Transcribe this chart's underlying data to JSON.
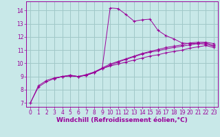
{
  "background_color": "#c8e8e8",
  "grid_color": "#a0c8c8",
  "line_color": "#990099",
  "marker": "+",
  "xlabel": "Windchill (Refroidissement éolien,°C)",
  "xlabel_color": "#990099",
  "xlabel_fontsize": 6.5,
  "tick_color": "#990099",
  "tick_fontsize": 5.5,
  "xlim": [
    -0.5,
    23.5
  ],
  "ylim": [
    6.7,
    14.7
  ],
  "yticks": [
    7,
    8,
    9,
    10,
    11,
    12,
    13,
    14
  ],
  "xticks": [
    0,
    1,
    2,
    3,
    4,
    5,
    6,
    7,
    8,
    9,
    10,
    11,
    12,
    13,
    14,
    15,
    16,
    17,
    18,
    19,
    20,
    21,
    22,
    23
  ],
  "line1_x": [
    0,
    1,
    2,
    3,
    4,
    5,
    6,
    7,
    8,
    9,
    10,
    11,
    12,
    13,
    14,
    15,
    16,
    17,
    18,
    19,
    20,
    21,
    22,
    23
  ],
  "line1_y": [
    7.0,
    8.3,
    8.7,
    8.9,
    9.0,
    9.1,
    9.0,
    9.1,
    9.3,
    9.6,
    14.2,
    14.15,
    13.7,
    13.2,
    13.3,
    13.35,
    12.5,
    12.1,
    11.85,
    11.55,
    11.5,
    11.5,
    11.45,
    11.3
  ],
  "line2_x": [
    0,
    1,
    2,
    3,
    4,
    5,
    6,
    7,
    8,
    9,
    10,
    11,
    12,
    13,
    14,
    15,
    16,
    17,
    18,
    19,
    20,
    21,
    22,
    23
  ],
  "line2_y": [
    7.0,
    8.2,
    8.6,
    8.85,
    9.0,
    9.05,
    9.0,
    9.1,
    9.3,
    9.6,
    9.85,
    10.1,
    10.3,
    10.5,
    10.7,
    10.85,
    10.95,
    11.1,
    11.2,
    11.3,
    11.4,
    11.5,
    11.55,
    11.35
  ],
  "line3_x": [
    3,
    4,
    5,
    6,
    7,
    8,
    9,
    10,
    11,
    12,
    13,
    14,
    15,
    16,
    17,
    18,
    19,
    20,
    21,
    22,
    23
  ],
  "line3_y": [
    8.85,
    9.0,
    9.05,
    9.0,
    9.1,
    9.3,
    9.6,
    9.8,
    9.95,
    10.1,
    10.25,
    10.4,
    10.55,
    10.65,
    10.8,
    10.9,
    11.0,
    11.15,
    11.25,
    11.35,
    11.2
  ],
  "line4_x": [
    3,
    4,
    5,
    6,
    7,
    8,
    9,
    10,
    11,
    12,
    13,
    14,
    15,
    16,
    17,
    18,
    19,
    20,
    21,
    22,
    23
  ],
  "line4_y": [
    8.85,
    9.0,
    9.1,
    9.0,
    9.15,
    9.35,
    9.65,
    9.95,
    10.15,
    10.35,
    10.55,
    10.75,
    10.9,
    11.05,
    11.2,
    11.3,
    11.4,
    11.55,
    11.6,
    11.6,
    11.5
  ]
}
